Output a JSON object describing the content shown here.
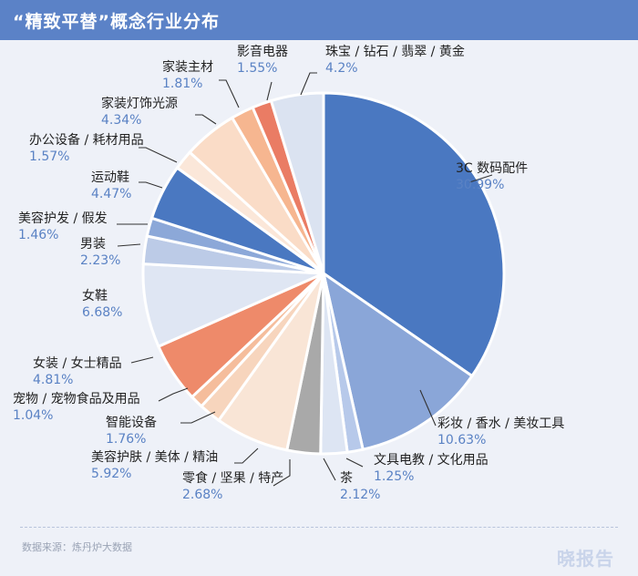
{
  "header": {
    "title": "“精致平替”概念行业分布"
  },
  "footer": {
    "source": "数据来源：炼丹炉大数据",
    "logo": "晓报告"
  },
  "chart_data": {
    "type": "pie",
    "title": "“精致平替”概念行业分布",
    "slices": [
      {
        "name": "3C 数码配件",
        "value": 30.99,
        "display": "30.99%",
        "color": "#4a78c1"
      },
      {
        "name": "彩妆 / 香水 / 美妆工具",
        "value": 10.63,
        "display": "10.63%",
        "color": "#8aa6d8"
      },
      {
        "name": "文具电教 / 文化用品",
        "value": 1.25,
        "display": "1.25%",
        "color": "#b7c9ea"
      },
      {
        "name": "茶",
        "value": 2.12,
        "display": "2.12%",
        "color": "#dde5f3"
      },
      {
        "name": "零食 / 坚果 / 特产",
        "value": 2.68,
        "display": "2.68%",
        "color": "#a9a9a9"
      },
      {
        "name": "美容护肤 / 美体 / 精油",
        "value": 5.92,
        "display": "5.92%",
        "color": "#f9e5d6"
      },
      {
        "name": "智能设备",
        "value": 1.76,
        "display": "1.76%",
        "color": "#f7d5bd"
      },
      {
        "name": "宠物 / 宠物食品及用品",
        "value": 1.04,
        "display": "1.04%",
        "color": "#f5bd9c"
      },
      {
        "name": "女装 / 女士精品",
        "value": 4.81,
        "display": "4.81%",
        "color": "#ee8a6a"
      },
      {
        "name": "女鞋",
        "value": 6.68,
        "display": "6.68%",
        "color": "#dfe6f3"
      },
      {
        "name": "男装",
        "value": 2.23,
        "display": "2.23%",
        "color": "#bccbe7"
      },
      {
        "name": "美容护发 / 假发",
        "value": 1.46,
        "display": "1.46%",
        "color": "#8ca8d8"
      },
      {
        "name": "运动鞋",
        "value": 4.47,
        "display": "4.47%",
        "color": "#4a78c1"
      },
      {
        "name": "办公设备 / 耗材用品",
        "value": 1.57,
        "display": "1.57%",
        "color": "#fbe7d9"
      },
      {
        "name": "家装灯饰光源",
        "value": 4.34,
        "display": "4.34%",
        "color": "#fadcc7"
      },
      {
        "name": "家装主材",
        "value": 1.81,
        "display": "1.81%",
        "color": "#f6b690"
      },
      {
        "name": "影音电器",
        "value": 1.55,
        "display": "1.55%",
        "color": "#ea7c64"
      },
      {
        "name": "珠宝 / 钻石 / 翡翠 / 黄金",
        "value": 4.2,
        "display": "4.2%",
        "color": "#dbe3f1"
      }
    ]
  }
}
